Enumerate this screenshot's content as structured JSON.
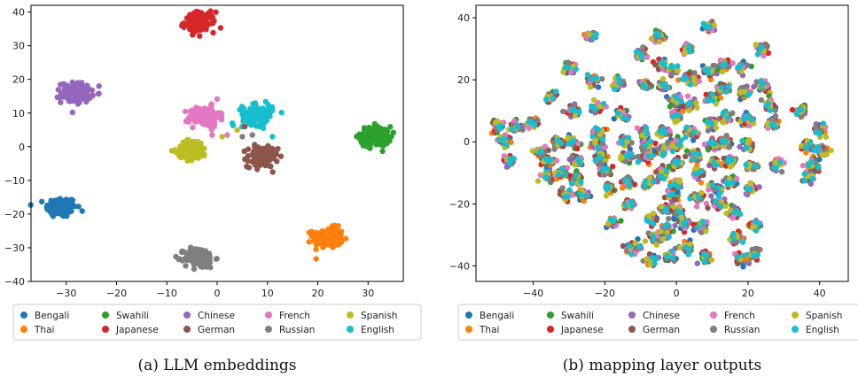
{
  "chart_data": [
    {
      "type": "scatter",
      "caption": "(a) LLM embeddings",
      "xlim": [
        -37,
        37
      ],
      "ylim": [
        -40,
        42
      ],
      "xticks": [
        -30,
        -20,
        -10,
        0,
        10,
        20,
        30
      ],
      "yticks": [
        -40,
        -30,
        -20,
        -10,
        0,
        10,
        20,
        30,
        40
      ],
      "grid": false,
      "legend_position": "bottom",
      "series": [
        {
          "name": "Bengali",
          "color": "#1f77b4",
          "centers": [
            [
              -31,
              -18
            ]
          ]
        },
        {
          "name": "Thai",
          "color": "#ff7f0e",
          "centers": [
            [
              22,
              -27
            ]
          ]
        },
        {
          "name": "Swahili",
          "color": "#2ca02c",
          "centers": [
            [
              31.5,
              3
            ]
          ]
        },
        {
          "name": "Japanese",
          "color": "#d62728",
          "centers": [
            [
              -3.5,
              37
            ]
          ]
        },
        {
          "name": "Chinese",
          "color": "#9467bd",
          "centers": [
            [
              -28,
              16
            ]
          ]
        },
        {
          "name": "German",
          "color": "#8c564b",
          "centers": [
            [
              9,
              -3
            ]
          ]
        },
        {
          "name": "French",
          "color": "#e377c2",
          "centers": [
            [
              -2.5,
              9
            ]
          ]
        },
        {
          "name": "Russian",
          "color": "#7f7f7f",
          "centers": [
            [
              -3.5,
              -33
            ]
          ]
        },
        {
          "name": "Spanish",
          "color": "#bcbd22",
          "centers": [
            [
              -5,
              -1
            ]
          ]
        },
        {
          "name": "English",
          "color": "#17becf",
          "centers": [
            [
              8,
              9.5
            ]
          ]
        }
      ]
    },
    {
      "type": "scatter",
      "caption": "(b) mapping layer outputs",
      "xlim": [
        -56,
        48
      ],
      "ylim": [
        -45,
        44
      ],
      "xticks": [
        -40,
        -20,
        0,
        20,
        40
      ],
      "yticks": [
        -40,
        -20,
        0,
        20,
        40
      ],
      "grid": false,
      "legend_position": "bottom",
      "mixed_cluster_centers": [
        [
          -50,
          5
        ],
        [
          -45,
          5
        ],
        [
          -48,
          0
        ],
        [
          -47,
          -6
        ],
        [
          -40,
          6
        ],
        [
          -38,
          -3
        ],
        [
          -36,
          -11
        ],
        [
          -36,
          -6
        ],
        [
          -35,
          14
        ],
        [
          -33,
          0
        ],
        [
          -32,
          -10
        ],
        [
          -31,
          -17
        ],
        [
          -30,
          24
        ],
        [
          -29,
          10
        ],
        [
          -29,
          0
        ],
        [
          -28,
          -6
        ],
        [
          -28,
          -12
        ],
        [
          -26,
          -17
        ],
        [
          -24,
          34
        ],
        [
          -23,
          20
        ],
        [
          -22,
          11
        ],
        [
          -22,
          3
        ],
        [
          -22,
          -1
        ],
        [
          -21,
          -5
        ],
        [
          -20,
          -9
        ],
        [
          -19,
          -15
        ],
        [
          -18,
          -26
        ],
        [
          -16,
          19
        ],
        [
          -15,
          9
        ],
        [
          -14,
          0
        ],
        [
          -14,
          -5
        ],
        [
          -14,
          -13
        ],
        [
          -13,
          -20
        ],
        [
          -12,
          -34
        ],
        [
          -10,
          28
        ],
        [
          -9,
          18
        ],
        [
          -9,
          3
        ],
        [
          -8,
          -1
        ],
        [
          -8,
          -5
        ],
        [
          -8,
          -13
        ],
        [
          -7,
          -25
        ],
        [
          -7,
          -38
        ],
        [
          -6,
          -31
        ],
        [
          -5,
          34
        ],
        [
          -4,
          25
        ],
        [
          -4,
          18
        ],
        [
          -4,
          3
        ],
        [
          -4,
          -3
        ],
        [
          -4,
          -10
        ],
        [
          -3,
          -22
        ],
        [
          -3,
          -29
        ],
        [
          -2,
          -37
        ],
        [
          -1,
          -17
        ],
        [
          -1,
          23
        ],
        [
          0,
          13
        ],
        [
          0,
          8
        ],
        [
          0,
          -1
        ],
        [
          0,
          -7
        ],
        [
          0,
          -14
        ],
        [
          1,
          -23
        ],
        [
          2,
          -26
        ],
        [
          3,
          -34
        ],
        [
          3,
          30
        ],
        [
          4,
          20
        ],
        [
          4,
          12
        ],
        [
          4,
          3
        ],
        [
          5,
          -4
        ],
        [
          6,
          -10
        ],
        [
          6,
          -18
        ],
        [
          7,
          -27
        ],
        [
          8,
          -37
        ],
        [
          9,
          37
        ],
        [
          9,
          23
        ],
        [
          10,
          14
        ],
        [
          10,
          6
        ],
        [
          10,
          -1
        ],
        [
          11,
          -7
        ],
        [
          11,
          -15
        ],
        [
          12,
          -20
        ],
        [
          13,
          25
        ],
        [
          13,
          17
        ],
        [
          14,
          8
        ],
        [
          14,
          0
        ],
        [
          15,
          -6
        ],
        [
          15,
          -13
        ],
        [
          16,
          -23
        ],
        [
          17,
          -31
        ],
        [
          18,
          -38
        ],
        [
          18,
          24
        ],
        [
          19,
          16
        ],
        [
          20,
          7
        ],
        [
          20,
          -1
        ],
        [
          21,
          -8
        ],
        [
          21,
          -15
        ],
        [
          22,
          -27
        ],
        [
          22,
          -36
        ],
        [
          24,
          30
        ],
        [
          24,
          18
        ],
        [
          26,
          12
        ],
        [
          27,
          6
        ],
        [
          28,
          -7
        ],
        [
          35,
          10
        ],
        [
          37,
          -1
        ],
        [
          37,
          -11
        ],
        [
          38,
          -7
        ],
        [
          40,
          4
        ],
        [
          41,
          -3
        ]
      ],
      "series": [
        {
          "name": "Bengali",
          "color": "#1f77b4"
        },
        {
          "name": "Thai",
          "color": "#ff7f0e"
        },
        {
          "name": "Swahili",
          "color": "#2ca02c"
        },
        {
          "name": "Japanese",
          "color": "#d62728"
        },
        {
          "name": "Chinese",
          "color": "#9467bd"
        },
        {
          "name": "German",
          "color": "#8c564b"
        },
        {
          "name": "French",
          "color": "#e377c2"
        },
        {
          "name": "Russian",
          "color": "#7f7f7f"
        },
        {
          "name": "Spanish",
          "color": "#bcbd22"
        },
        {
          "name": "English",
          "color": "#17becf"
        }
      ]
    }
  ]
}
